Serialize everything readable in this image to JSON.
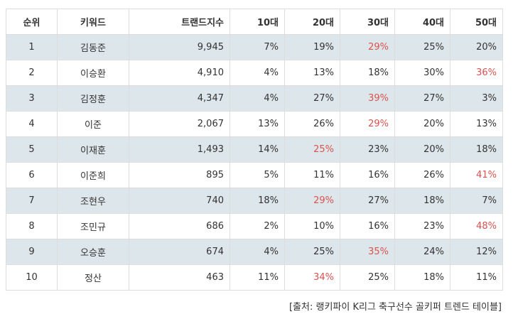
{
  "headers": [
    "순위",
    "키워드",
    "트랜드지수",
    "10대",
    "20대",
    "30대",
    "40대",
    "50대"
  ],
  "rows": [
    {
      "rank": "1",
      "keyword": "김동준",
      "index": "9,945",
      "a10": "7%",
      "a20": "19%",
      "a30": "29%",
      "a40": "25%",
      "a50": "20%",
      "hl": "a30"
    },
    {
      "rank": "2",
      "keyword": "이승환",
      "index": "4,910",
      "a10": "4%",
      "a20": "13%",
      "a30": "18%",
      "a40": "30%",
      "a50": "36%",
      "hl": "a50"
    },
    {
      "rank": "3",
      "keyword": "김정훈",
      "index": "4,347",
      "a10": "4%",
      "a20": "27%",
      "a30": "39%",
      "a40": "27%",
      "a50": "3%",
      "hl": "a30"
    },
    {
      "rank": "4",
      "keyword": "이준",
      "index": "2,067",
      "a10": "13%",
      "a20": "26%",
      "a30": "29%",
      "a40": "20%",
      "a50": "13%",
      "hl": "a30"
    },
    {
      "rank": "5",
      "keyword": "이재훈",
      "index": "1,493",
      "a10": "14%",
      "a20": "25%",
      "a30": "23%",
      "a40": "20%",
      "a50": "18%",
      "hl": "a20"
    },
    {
      "rank": "6",
      "keyword": "이준희",
      "index": "895",
      "a10": "5%",
      "a20": "11%",
      "a30": "16%",
      "a40": "26%",
      "a50": "41%",
      "hl": "a50"
    },
    {
      "rank": "7",
      "keyword": "조현우",
      "index": "740",
      "a10": "18%",
      "a20": "29%",
      "a30": "27%",
      "a40": "18%",
      "a50": "7%",
      "hl": "a20"
    },
    {
      "rank": "8",
      "keyword": "조민규",
      "index": "686",
      "a10": "2%",
      "a20": "10%",
      "a30": "16%",
      "a40": "23%",
      "a50": "48%",
      "hl": "a50"
    },
    {
      "rank": "9",
      "keyword": "오승훈",
      "index": "674",
      "a10": "4%",
      "a20": "25%",
      "a30": "35%",
      "a40": "24%",
      "a50": "12%",
      "hl": "a30"
    },
    {
      "rank": "10",
      "keyword": "정산",
      "index": "463",
      "a10": "11%",
      "a20": "34%",
      "a30": "25%",
      "a40": "18%",
      "a50": "11%",
      "hl": "a20"
    }
  ],
  "source": "[출처: 랭키파이 K리그 축구선수 골키퍼 트렌드 테이블]",
  "colors": {
    "highlight": "#d9534f",
    "row_shade": "#dde6ea",
    "border": "#dddddd"
  }
}
